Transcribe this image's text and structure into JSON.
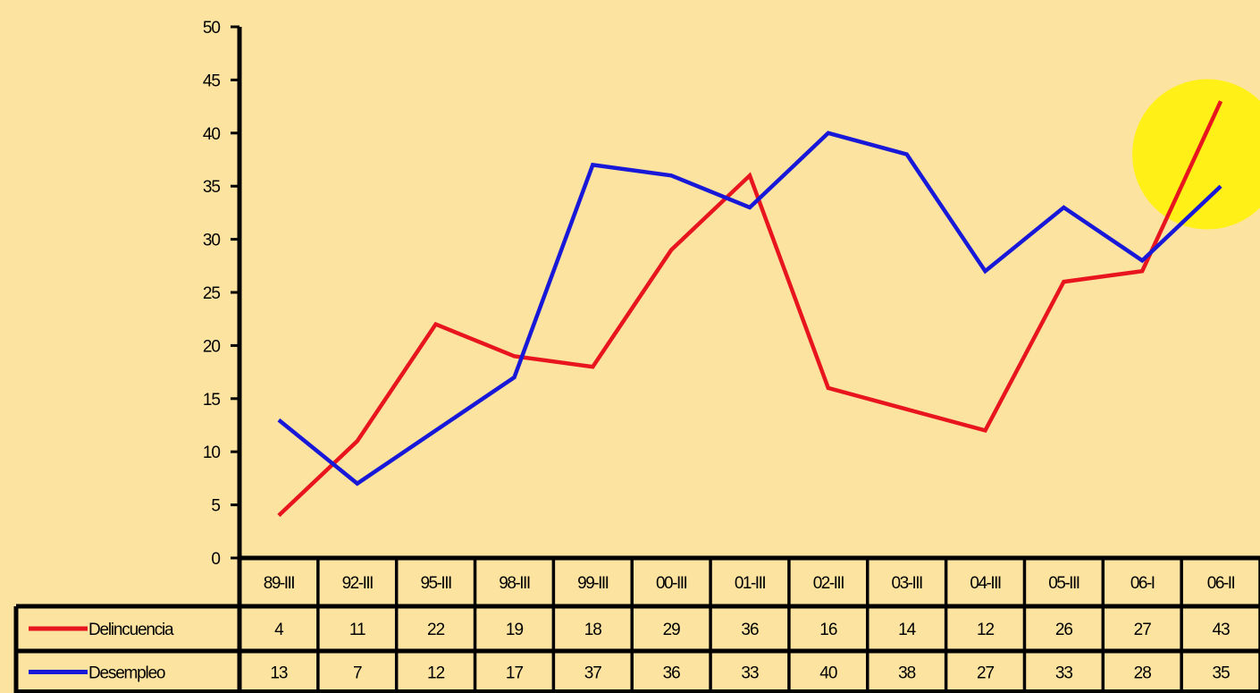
{
  "chart_data": {
    "type": "line",
    "categories": [
      "89-III",
      "92-III",
      "95-III",
      "98-III",
      "99-III",
      "00-III",
      "01-III",
      "02-III",
      "03-III",
      "04-III",
      "05-III",
      "06-I",
      "06-II"
    ],
    "series": [
      {
        "name": "Delincuencia",
        "color": "#e8141e",
        "values": [
          4,
          11,
          22,
          19,
          18,
          29,
          36,
          16,
          14,
          12,
          26,
          27,
          43
        ]
      },
      {
        "name": "Desempleo",
        "color": "#1818d8",
        "values": [
          13,
          7,
          12,
          17,
          37,
          36,
          33,
          40,
          38,
          27,
          33,
          28,
          35
        ]
      }
    ],
    "y_ticks": [
      "0",
      "5",
      "10",
      "15",
      "20",
      "25",
      "30",
      "35",
      "40",
      "45",
      "50"
    ],
    "ylim": [
      0,
      50
    ],
    "grid": false,
    "legend": "data-table",
    "highlight": {
      "color": "#fff200",
      "category": "06-II"
    },
    "title": "",
    "xlabel": "",
    "ylabel": ""
  }
}
